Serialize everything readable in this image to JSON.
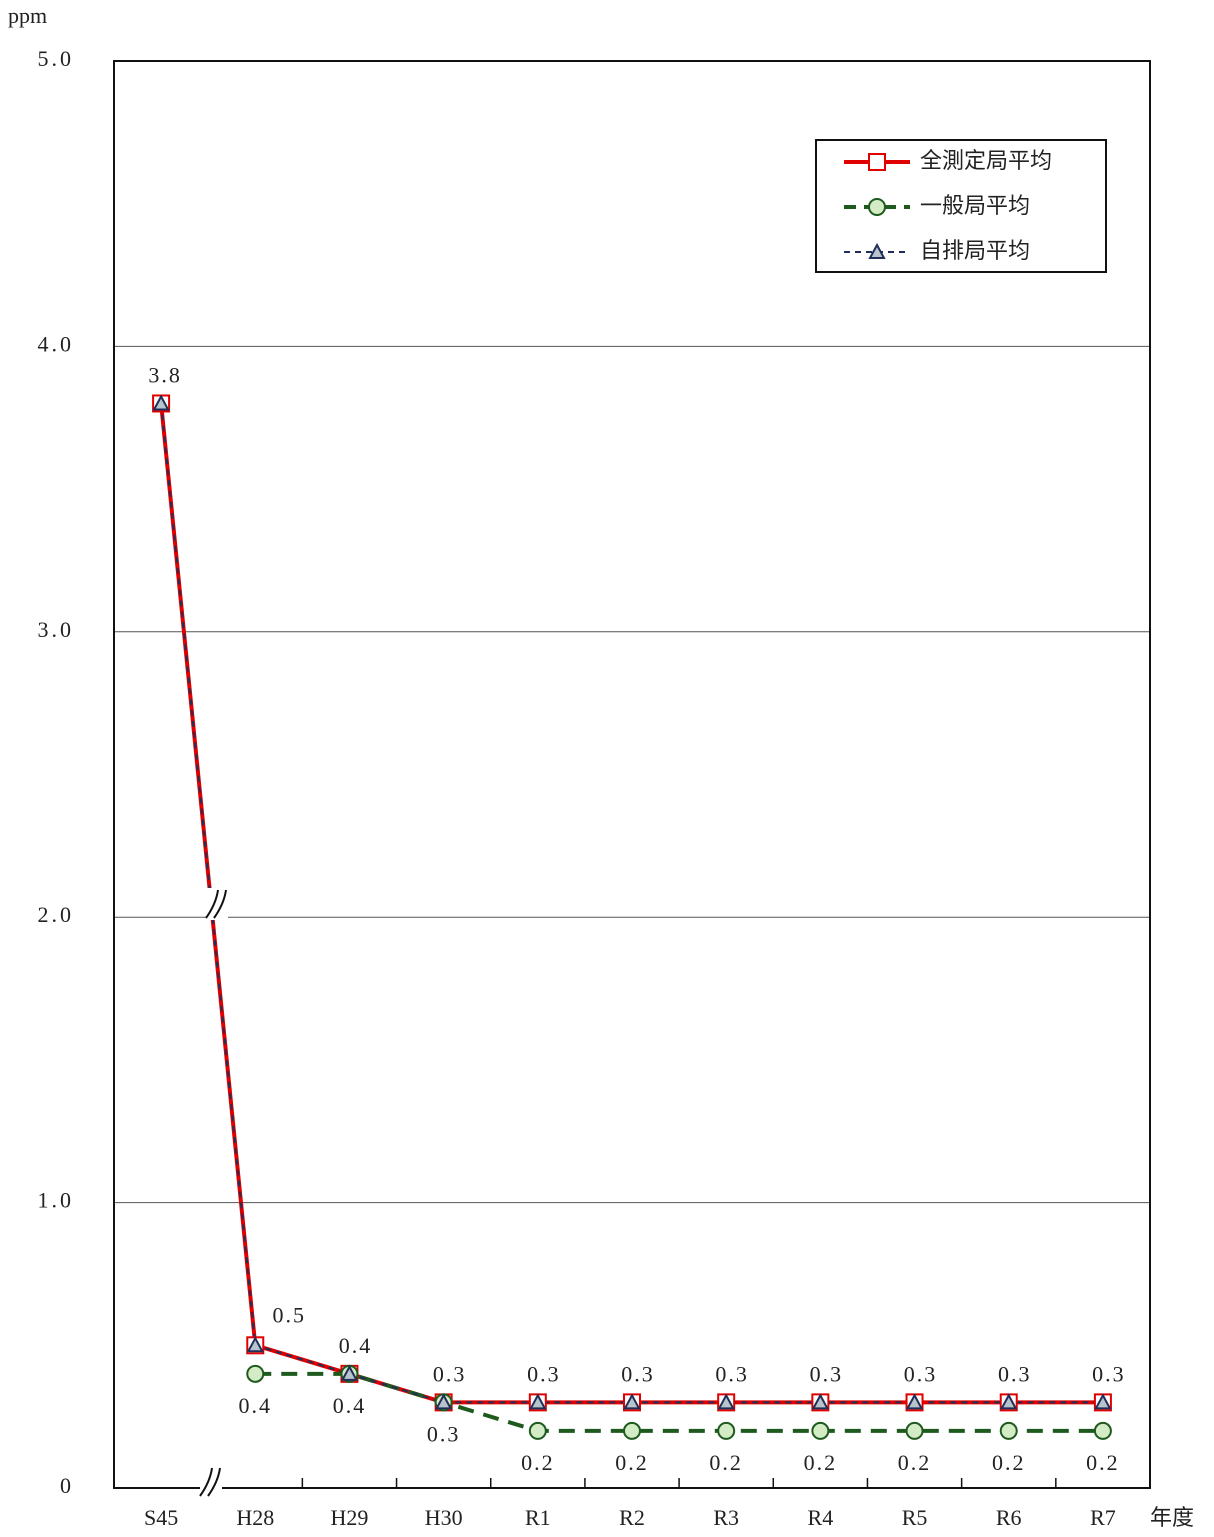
{
  "chart_data": {
    "type": "line",
    "y_unit": "ppm",
    "x_label": "年度",
    "categories": [
      "S45",
      "H28",
      "H29",
      "H30",
      "R1",
      "R2",
      "R3",
      "R4",
      "R5",
      "R6",
      "R7"
    ],
    "series": [
      {
        "name": "全測定局平均",
        "color": "#e00000",
        "line_style": "solid",
        "marker": "square",
        "marker_fill": "#ffffff",
        "values": [
          3.8,
          0.5,
          0.4,
          0.3,
          0.3,
          0.3,
          0.3,
          0.3,
          0.3,
          0.3,
          0.3
        ]
      },
      {
        "name": "一般局平均",
        "color": "#1e5a1e",
        "line_style": "dashed",
        "marker": "circle",
        "marker_fill": "#d4ecc6",
        "values": [
          null,
          0.4,
          0.4,
          0.3,
          0.2,
          0.2,
          0.2,
          0.2,
          0.2,
          0.2,
          0.2
        ]
      },
      {
        "name": "自排局平均",
        "color": "#1f2f5a",
        "line_style": "dashed",
        "marker": "triangle",
        "marker_fill": "#b8c4cc",
        "values": [
          3.8,
          0.5,
          0.4,
          0.3,
          0.3,
          0.3,
          0.3,
          0.3,
          0.3,
          0.3,
          0.3
        ]
      }
    ],
    "ylim": [
      0,
      5
    ],
    "yticks": [
      0,
      {
        "value": 1,
        "label": "1.0"
      },
      {
        "value": 2,
        "label": "2.0"
      },
      {
        "value": 3,
        "label": "3.0"
      },
      {
        "value": 4,
        "label": "4.0"
      },
      {
        "value": 5,
        "label": "5.0"
      }
    ],
    "grid": true,
    "legend": "upper-right"
  }
}
